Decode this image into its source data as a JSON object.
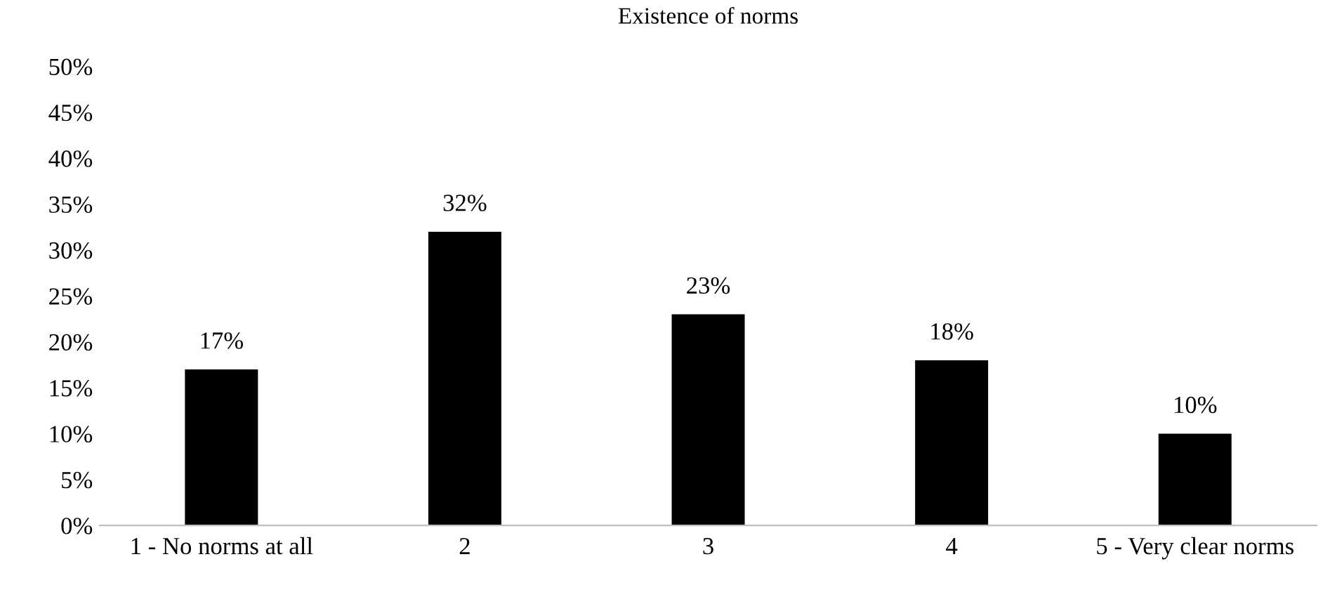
{
  "chart_data": {
    "type": "bar",
    "title": "Existence of norms",
    "categories": [
      "1 - No norms at all",
      "2",
      "3",
      "4",
      "5 - Very clear norms"
    ],
    "values": [
      17,
      32,
      23,
      18,
      10
    ],
    "color": "#000000",
    "value_labels": [
      "17%",
      "32%",
      "23%",
      "18%",
      "10%"
    ],
    "ylim": [
      0,
      50
    ],
    "yticks": [
      {
        "value": 0,
        "label": "0%"
      },
      {
        "value": 5,
        "label": "5%"
      },
      {
        "value": 10,
        "label": "10%"
      },
      {
        "value": 15,
        "label": "15%"
      },
      {
        "value": 20,
        "label": "20%"
      },
      {
        "value": 25,
        "label": "25%"
      },
      {
        "value": 30,
        "label": "30%"
      },
      {
        "value": 35,
        "label": "35%"
      },
      {
        "value": 40,
        "label": "40%"
      },
      {
        "value": 45,
        "label": "45%"
      },
      {
        "value": 50,
        "label": "50%"
      }
    ],
    "grid": false,
    "legend": false
  }
}
